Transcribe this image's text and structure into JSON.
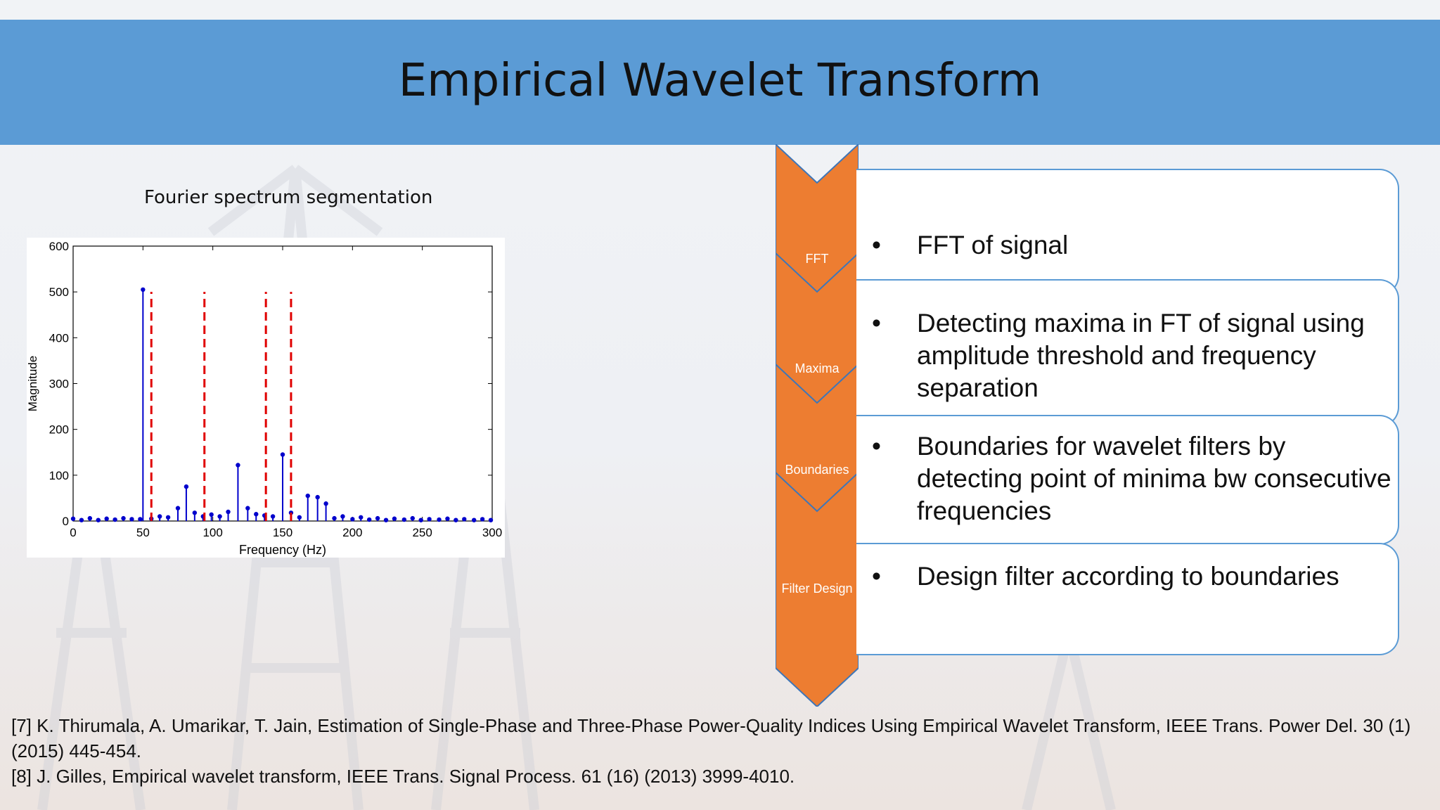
{
  "slide": {
    "title": "Empirical Wavelet Transform"
  },
  "left_panel": {
    "caption": "Fourier spectrum segmentation"
  },
  "stages": [
    {
      "label": "FFT",
      "bullet": "FFT of signal"
    },
    {
      "label": "Maxima",
      "bullet": "Detecting maxima in FT of signal using amplitude threshold and frequency separation"
    },
    {
      "label": "Boundaries",
      "bullet": "Boundaries for wavelet filters by detecting point of minima bw consecutive frequencies"
    },
    {
      "label": "Filter Design",
      "bullet": "Design filter according to boundaries"
    }
  ],
  "bullet_symbol": "•",
  "references": [
    "[7]  K. Thirumala, A. Umarikar, T. Jain, Estimation of Single-Phase and Three-Phase Power-Quality Indices Using Empirical Wavelet Transform, IEEE Trans. Power Del. 30 (1) (2015) 445-454.",
    "[8]  J. Gilles, Empirical wavelet transform, IEEE Trans. Signal Process. 61 (16) (2013) 3999-4010."
  ],
  "colors": {
    "title_bar": "#5b9bd5",
    "chevron": "#ed7d31",
    "card_border": "#5b9bd5",
    "stem": "#0000cc",
    "boundary": "#e00000"
  },
  "chart_data": {
    "type": "stem",
    "xlabel": "Frequency (Hz)",
    "ylabel": "Magnitude",
    "xlim": [
      0,
      300
    ],
    "ylim": [
      0,
      600
    ],
    "xticks": [
      0,
      50,
      100,
      150,
      200,
      250,
      300
    ],
    "yticks": [
      0,
      100,
      200,
      300,
      400,
      500,
      600
    ],
    "x": [
      0,
      6,
      12,
      18,
      24,
      30,
      36,
      42,
      48,
      50,
      56,
      62,
      68,
      75,
      81,
      87,
      93,
      99,
      105,
      111,
      118,
      125,
      131,
      137,
      143,
      150,
      156,
      162,
      168,
      175,
      181,
      187,
      193,
      200,
      206,
      212,
      218,
      224,
      230,
      237,
      243,
      249,
      255,
      262,
      268,
      274,
      280,
      287,
      293,
      299
    ],
    "y": [
      5,
      2,
      6,
      2,
      5,
      3,
      6,
      4,
      4,
      505,
      5,
      10,
      8,
      28,
      75,
      18,
      10,
      14,
      10,
      20,
      122,
      28,
      15,
      12,
      10,
      145,
      18,
      8,
      55,
      52,
      38,
      6,
      10,
      4,
      8,
      3,
      6,
      2,
      5,
      3,
      6,
      2,
      4,
      3,
      5,
      2,
      4,
      2,
      4,
      2
    ],
    "boundaries": [
      56,
      94,
      138,
      156
    ],
    "boundary_range": [
      0,
      500
    ]
  }
}
